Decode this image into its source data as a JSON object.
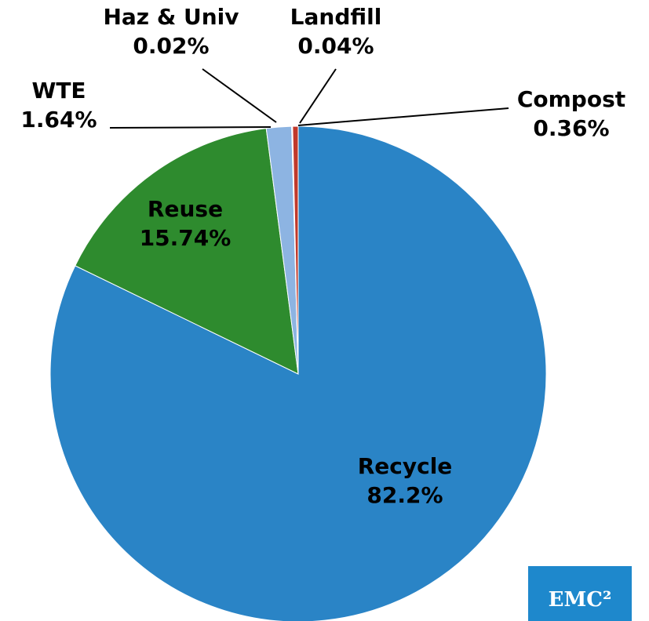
{
  "chart_data": {
    "type": "pie",
    "categories": [
      "Recycle",
      "Reuse",
      "WTE",
      "Haz & Univ",
      "Landfill",
      "Compost"
    ],
    "values": [
      82.2,
      15.74,
      1.64,
      0.02,
      0.04,
      0.36
    ],
    "value_labels": [
      "82.2%",
      "15.74%",
      "1.64%",
      "0.02%",
      "0.04%",
      "0.36%"
    ],
    "colors": [
      "#2a84c6",
      "#2e8b2e",
      "#8db4e2",
      "#4f81bd",
      "#7f7f7f",
      "#c0392b"
    ]
  },
  "logo": "EMC²"
}
